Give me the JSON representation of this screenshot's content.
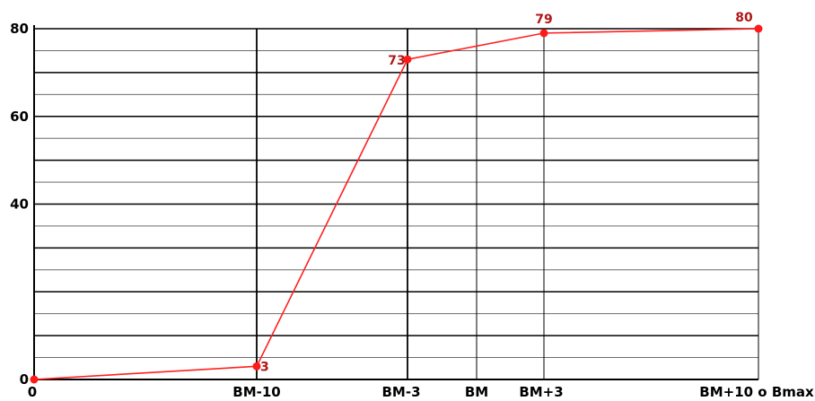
{
  "chart_data": {
    "type": "line",
    "title": "",
    "xlabel": "",
    "ylabel": "",
    "ylim": [
      0,
      80
    ],
    "y_ticks": [
      0,
      40,
      60,
      80
    ],
    "x_tick_labels": [
      "0",
      "BM-10",
      "BM-3",
      "BM",
      "BM+3",
      "BM+10 o Bmax"
    ],
    "grid": true,
    "series": [
      {
        "points": [
          {
            "x": "0",
            "y": 0,
            "label": ""
          },
          {
            "x": "BM-10",
            "y": 3,
            "label": "3"
          },
          {
            "x": "BM-3",
            "y": 73,
            "label": "73"
          },
          {
            "x": "BM+3",
            "y": 79,
            "label": "79"
          },
          {
            "x": "BM+10 o Bmax",
            "y": 80,
            "label": "80"
          }
        ],
        "color": "#ff2020"
      }
    ],
    "colors": {
      "line": "#ff2020",
      "marker": "#ff1a1a",
      "data_label": "#b01818",
      "grid": "#000000"
    }
  }
}
